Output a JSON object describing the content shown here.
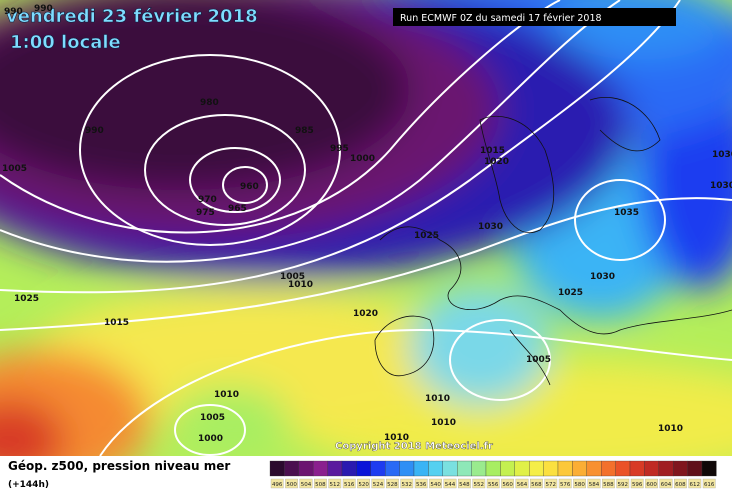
{
  "header": {
    "title": "vendredi 23 février 2018",
    "time": "1:00 locale",
    "run": "Run ECMWF 0Z du samedi 17 février 2018"
  },
  "isobar_labels": [
    "990",
    "990",
    "980",
    "990",
    "985",
    "995",
    "1000",
    "1005",
    "960",
    "970",
    "975",
    "965",
    "1015",
    "1020",
    "1030",
    "1030",
    "1035",
    "1025",
    "1030",
    "1005",
    "1010",
    "1030",
    "1025",
    "1025",
    "1015",
    "1020",
    "1005",
    "1010",
    "1010",
    "1005",
    "1010",
    "1000",
    "1010",
    "1010"
  ],
  "copyright": "Copyright 2018 Meteociel.fr",
  "footer": {
    "title": "Géop. z500, pression niveau mer",
    "step": "(+144h)"
  },
  "colorbar": {
    "labels": [
      "496",
      "500",
      "504",
      "508",
      "512",
      "516",
      "520",
      "524",
      "528",
      "532",
      "536",
      "540",
      "544",
      "548",
      "552",
      "556",
      "560",
      "564",
      "568",
      "572",
      "576",
      "580",
      "584",
      "588",
      "592",
      "596",
      "600",
      "604",
      "608",
      "612",
      "616"
    ],
    "colors": [
      "#2b0a2e",
      "#4a0f4f",
      "#6b1470",
      "#8a1f8e",
      "#5a1a9e",
      "#2a1ab0",
      "#0a14d8",
      "#1e3cf0",
      "#2a6af5",
      "#2f8ff5",
      "#3ab4f5",
      "#55d0f0",
      "#7ae0e0",
      "#8ee8b8",
      "#9aeb8e",
      "#a8ee62",
      "#c4f050",
      "#e0f048",
      "#f5ee48",
      "#fbe040",
      "#fcc83a",
      "#fbae35",
      "#f89030",
      "#f3702c",
      "#ea5228",
      "#d83a26",
      "#c02a24",
      "#a01e22",
      "#80161e",
      "#60101a",
      "#100808"
    ]
  }
}
